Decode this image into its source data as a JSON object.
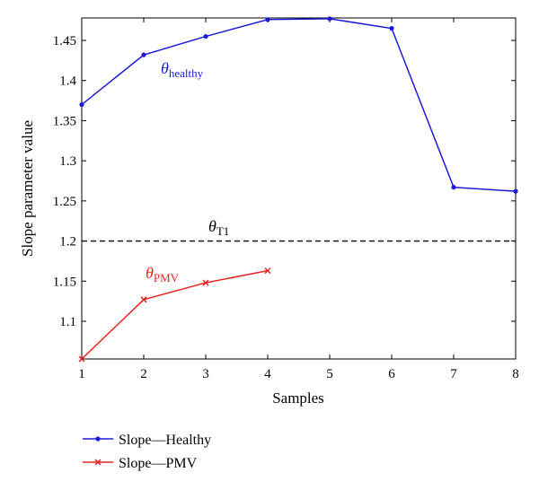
{
  "chart_data": {
    "type": "line",
    "xlabel": "Samples",
    "ylabel": "Slope parameter value",
    "xlim": [
      1,
      8
    ],
    "ylim": [
      1.053,
      1.478
    ],
    "xticks": [
      "1",
      "2",
      "3",
      "4",
      "5",
      "6",
      "7",
      "8"
    ],
    "yticks": [
      "1.1",
      "1.15",
      "1.2",
      "1.25",
      "1.3",
      "1.35",
      "1.4",
      "1.45"
    ],
    "grid": false,
    "legend_position": "bottom-left, outside plot",
    "series": [
      {
        "name": "Slope—Healthy",
        "color": "#1a1adb",
        "marker": "dot",
        "x": [
          1,
          2,
          3,
          4,
          5,
          6,
          7,
          8
        ],
        "y": [
          1.37,
          1.432,
          1.455,
          1.476,
          1.477,
          1.465,
          1.267,
          1.262
        ]
      },
      {
        "name": "Slope—PMV",
        "color": "#e8231f",
        "marker": "x",
        "x": [
          1,
          2,
          3,
          4
        ],
        "y": [
          1.053,
          1.127,
          1.148,
          1.163
        ]
      }
    ],
    "threshold": {
      "y": 1.2,
      "color": "#000000",
      "style": "dashed"
    },
    "annotations": {
      "healthy": {
        "symbol": "θ",
        "subscript": "healthy",
        "color": "#1a1adb"
      },
      "threshold": {
        "symbol": "θ",
        "subscript": "T1",
        "color": "#000000"
      },
      "pmv": {
        "symbol": "θ",
        "subscript": "PMV",
        "color": "#e8231f"
      }
    }
  }
}
